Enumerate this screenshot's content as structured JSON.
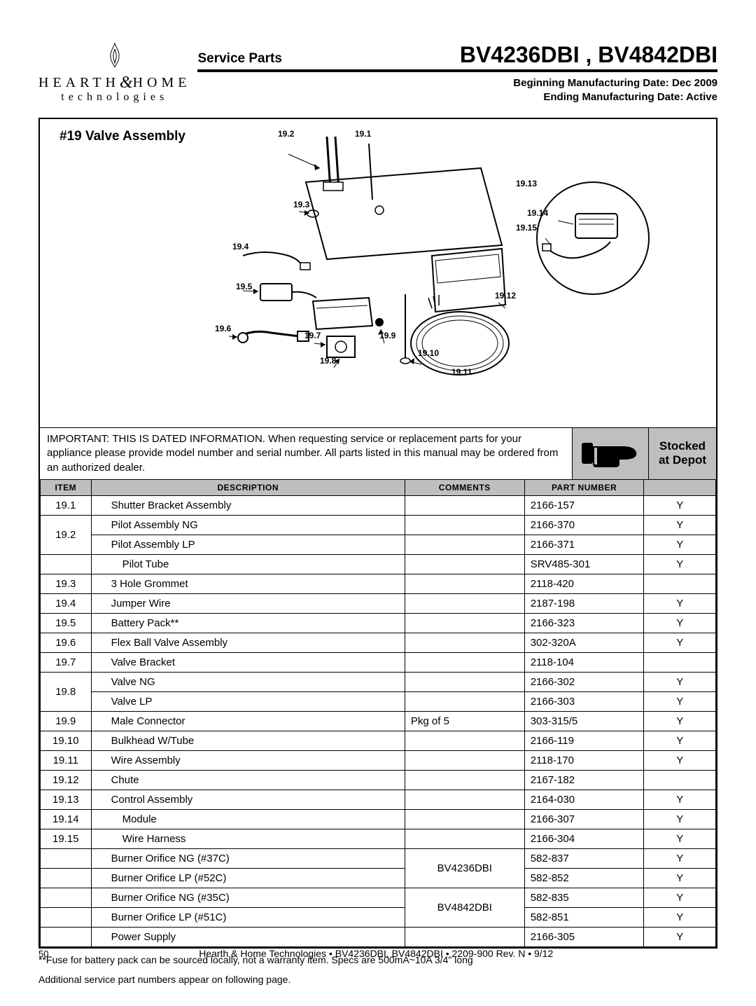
{
  "header": {
    "logo_line1_a": "HEARTH",
    "logo_line1_b": "HOME",
    "logo_amp": "&",
    "logo_line2": "technologies",
    "service_parts": "Service Parts",
    "model_title": "BV4236DBI , BV4842DBI",
    "date1": "Beginning Manufacturing Date: Dec 2009",
    "date2": "Ending Manufacturing Date: Active"
  },
  "diagram": {
    "title": "#19 Valve Assembly",
    "callouts": {
      "c19_1": "19.1",
      "c19_2": "19.2",
      "c19_3": "19.3",
      "c19_4": "19.4",
      "c19_5": "19.5",
      "c19_6": "19.6",
      "c19_7": "19.7",
      "c19_8": "19.8",
      "c19_9": "19.9",
      "c19_10": "19.10",
      "c19_11": "19.11",
      "c19_12": "19.12",
      "c19_13": "19.13",
      "c19_14": "19.14",
      "c19_15": "19.15"
    }
  },
  "important": "IMPORTANT: THIS IS DATED INFORMATION. When requesting service or replacement parts for your appliance please provide model number and serial number. All parts listed in this manual may be ordered from an authorized dealer.",
  "stocked_label_1": "Stocked",
  "stocked_label_2": "at Depot",
  "table": {
    "headers": {
      "item": "ITEM",
      "desc": "DESCRIPTION",
      "comm": "COMMENTS",
      "part": "PART NUMBER",
      "stock": ""
    },
    "rows": [
      {
        "item": "19.1",
        "desc": "Shutter Bracket Assembly",
        "indent": 1,
        "comm": "",
        "part": "2166-157",
        "stock": "Y"
      },
      {
        "item": "19.2",
        "desc": "Pilot Assembly NG",
        "indent": 1,
        "comm": "",
        "part": "2166-370",
        "stock": "Y",
        "rowspan_item": 2
      },
      {
        "item": "",
        "desc": "Pilot Assembly LP",
        "indent": 1,
        "comm": "",
        "part": "2166-371",
        "stock": "Y",
        "skip_item": true
      },
      {
        "item": "",
        "desc": "Pilot  Tube",
        "indent": 2,
        "comm": "",
        "part": "SRV485-301",
        "stock": "Y"
      },
      {
        "item": "19.3",
        "desc": "3 Hole Grommet",
        "indent": 1,
        "comm": "",
        "part": "2118-420",
        "stock": ""
      },
      {
        "item": "19.4",
        "desc": "Jumper Wire",
        "indent": 1,
        "comm": "",
        "part": "2187-198",
        "stock": "Y"
      },
      {
        "item": "19.5",
        "desc": "Battery Pack**",
        "indent": 1,
        "comm": "",
        "part": "2166-323",
        "stock": "Y"
      },
      {
        "item": "19.6",
        "desc": "Flex Ball Valve Assembly",
        "indent": 1,
        "comm": "",
        "part": "302-320A",
        "stock": "Y"
      },
      {
        "item": "19.7",
        "desc": "Valve Bracket",
        "indent": 1,
        "comm": "",
        "part": "2118-104",
        "stock": ""
      },
      {
        "item": "19.8",
        "desc": "Valve NG",
        "indent": 1,
        "comm": "",
        "part": "2166-302",
        "stock": "Y",
        "rowspan_item": 2
      },
      {
        "item": "",
        "desc": "Valve LP",
        "indent": 1,
        "comm": "",
        "part": "2166-303",
        "stock": "Y",
        "skip_item": true
      },
      {
        "item": "19.9",
        "desc": "Male Connector",
        "indent": 1,
        "comm": "Pkg of 5",
        "part": "303-315/5",
        "stock": "Y"
      },
      {
        "item": "19.10",
        "desc": "Bulkhead W/Tube",
        "indent": 1,
        "comm": "",
        "part": "2166-119",
        "stock": "Y"
      },
      {
        "item": "19.11",
        "desc": "Wire Assembly",
        "indent": 1,
        "comm": "",
        "part": "2118-170",
        "stock": "Y"
      },
      {
        "item": "19.12",
        "desc": "Chute",
        "indent": 1,
        "comm": "",
        "part": "2167-182",
        "stock": ""
      },
      {
        "item": "19.13",
        "desc": "Control Assembly",
        "indent": 1,
        "comm": "",
        "part": "2164-030",
        "stock": "Y"
      },
      {
        "item": "19.14",
        "desc": "Module",
        "indent": 2,
        "comm": "",
        "part": "2166-307",
        "stock": "Y"
      },
      {
        "item": "19.15",
        "desc": "Wire Harness",
        "indent": 2,
        "comm": "",
        "part": "2166-304",
        "stock": "Y"
      },
      {
        "item": "",
        "desc": "Burner Orifice NG (#37C)",
        "indent": 1,
        "comm": "BV4236DBI",
        "part": "582-837",
        "stock": "Y",
        "rowspan_comm": 2
      },
      {
        "item": "",
        "desc": "Burner Orifice LP (#52C)",
        "indent": 1,
        "comm": "",
        "part": "582-852",
        "stock": "Y",
        "skip_comm": true
      },
      {
        "item": "",
        "desc": "Burner Orifice NG (#35C)",
        "indent": 1,
        "comm": "BV4842DBI",
        "part": "582-835",
        "stock": "Y",
        "rowspan_comm": 2
      },
      {
        "item": "",
        "desc": "Burner Orifice LP (#51C)",
        "indent": 1,
        "comm": "",
        "part": "582-851",
        "stock": "Y",
        "skip_comm": true
      },
      {
        "item": "",
        "desc": "Power Supply",
        "indent": 1,
        "comm": "",
        "part": "2166-305",
        "stock": "Y"
      }
    ]
  },
  "footnote1": "**Fuse for battery pack can be sourced locally, not a warranty item. Specs are 500mA~10A 3/4\" long",
  "footnote2": "Additional service part numbers appear on following page.",
  "footer": {
    "page": "50",
    "text": "Hearth & Home Technologies  •  BV4236DBI, BV4842DBI  •  2209-900 Rev. N  •  9/12"
  },
  "style": {
    "grey": "#bfbfbf",
    "font_body": 15,
    "font_title": 32
  }
}
